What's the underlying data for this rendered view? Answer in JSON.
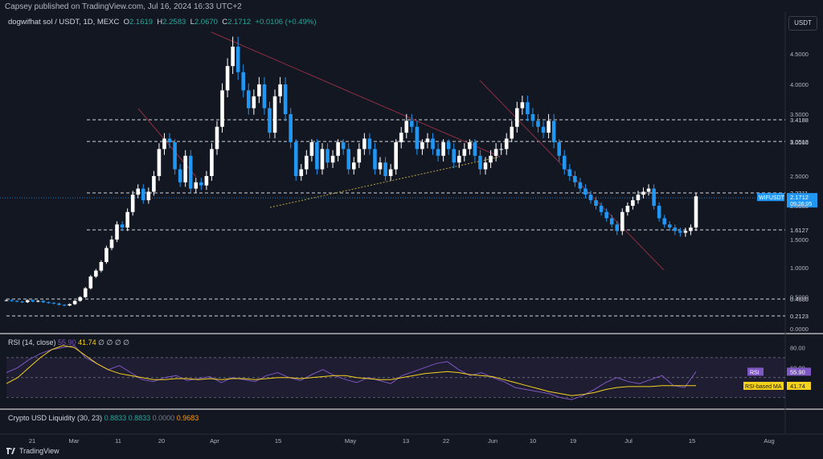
{
  "header": {
    "published": "Capsey published on TradingView.com, Jul 16, 2024 16:33 UTC+2",
    "symbol": "dogwifhat sol / USDT, 1D, MEXC",
    "o_label": "O",
    "o_value": "2.1619",
    "h_label": "H",
    "h_value": "2.2583",
    "l_label": "L",
    "l_value": "2.0670",
    "c_label": "C",
    "c_value": "2.1712",
    "change": "+0.0106 (+0.49%)"
  },
  "currency_button": "USDT",
  "rsi": {
    "title": "RSI (14, close)",
    "value": "55.90",
    "ma_value": "41.74",
    "hidden_values": "∅ ∅ ∅ ∅",
    "badge_rsi": "RSI",
    "badge_ma": "RSI-based MA"
  },
  "liquidity": {
    "title": "Crypto USD Liquidity (30, 23)",
    "v1": "0.8833",
    "v2": "0.8833",
    "v3": "0.0000",
    "v4": "0.9683"
  },
  "footer": {
    "brand": "TradingView"
  },
  "colors": {
    "bg": "#131722",
    "up": "#ffffff",
    "down": "#2196f3",
    "rsi": "#7e57c2",
    "rsi_ma": "#f5d21e",
    "trend": "#8e2f42"
  },
  "chart_data": {
    "type": "candlestick",
    "y_scale": "log",
    "price_ticks": [
      4.5,
      4.0,
      3.5,
      3.0,
      2.5,
      2.0,
      1.5,
      1.0,
      0.5,
      0.0
    ],
    "price_tick_labels": [
      "4.5000",
      "4.0000",
      "3.5000",
      "3.0000",
      "2.5000",
      "2.0000",
      "1.5000",
      "1.0000",
      "0.5000",
      "0.0000"
    ],
    "level_lines": [
      {
        "label": "3.4188",
        "value": 3.4188
      },
      {
        "label": "3.0513",
        "value": 3.0513
      },
      {
        "label": "2.2311",
        "value": 2.2311
      },
      {
        "label": "1.6127",
        "value": 1.6127
      },
      {
        "label": "0.4680",
        "value": 0.468
      },
      {
        "label": "0.2123",
        "value": 0.2123
      }
    ],
    "last_price": {
      "label": "WIFUSDT",
      "value": "2.1712",
      "countdown": "09:26:05"
    },
    "x_ticks": [
      "21",
      "Mar",
      "11",
      "20",
      "Apr",
      "15",
      "May",
      "13",
      "22",
      "Jun",
      "10",
      "19",
      "Jul",
      "15",
      "Aug"
    ],
    "rsi_ticks": [
      "80.00",
      "60.00",
      "40.00"
    ],
    "rsi_series": [
      55,
      60,
      68,
      74,
      78,
      80,
      82,
      70,
      64,
      58,
      62,
      55,
      48,
      46,
      50,
      52,
      47,
      49,
      51,
      45,
      50,
      48,
      46,
      52,
      55,
      50,
      47,
      53,
      58,
      52,
      48,
      45,
      50,
      47,
      44,
      52,
      56,
      60,
      64,
      66,
      58,
      52,
      55,
      50,
      46,
      40,
      38,
      36,
      34,
      30,
      28,
      32,
      38,
      45,
      50,
      46,
      44,
      48,
      52,
      42,
      40,
      56
    ],
    "rsi_ma_series": [
      44,
      50,
      60,
      70,
      78,
      82,
      80,
      72,
      64,
      58,
      54,
      52,
      50,
      48,
      48,
      49,
      49,
      48,
      49,
      48,
      49,
      49,
      48,
      49,
      50,
      50,
      49,
      50,
      51,
      52,
      52,
      50,
      49,
      48,
      48,
      50,
      52,
      54,
      55,
      56,
      55,
      53,
      52,
      51,
      48,
      45,
      42,
      39,
      36,
      34,
      32,
      33,
      35,
      38,
      40,
      41,
      41,
      41,
      42,
      42,
      42,
      42
    ]
  }
}
